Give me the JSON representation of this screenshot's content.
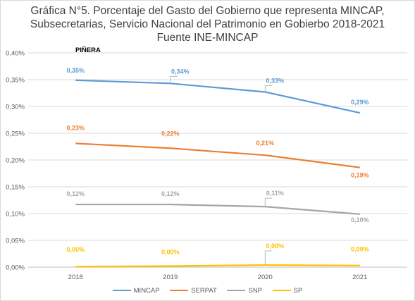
{
  "chart_data": {
    "type": "line",
    "title_lines": [
      "Gráfica N°5.  Porcentaje del Gasto del Gobierno que representa MINCAP,",
      "Subsecretarias, Servicio Nacional del Patrimonio en Gobierbo 2018-2021",
      "Fuente INE-MINCAP"
    ],
    "annotation": "PIÑERA",
    "categories": [
      "2018",
      "2019",
      "2020",
      "2021"
    ],
    "ylim": [
      0,
      0.4
    ],
    "yticks": [
      "0,00%",
      "0,05%",
      "0,10%",
      "0,15%",
      "0,20%",
      "0,25%",
      "0,30%",
      "0,35%",
      "0,40%"
    ],
    "grid": true,
    "legend_position": "bottom",
    "series": [
      {
        "name": "MINCAP",
        "color": "#5b9bd5",
        "values": [
          0.349,
          0.343,
          0.327,
          0.288
        ],
        "labels": [
          "0,35%",
          "0,34%",
          "0,33%",
          "0,29%"
        ]
      },
      {
        "name": "SERPAT",
        "color": "#ed7d31",
        "values": [
          0.231,
          0.222,
          0.209,
          0.186
        ],
        "labels": [
          "0,23%",
          "0,22%",
          "0,21%",
          "0,19%"
        ]
      },
      {
        "name": "SNP",
        "color": "#a5a5a5",
        "values": [
          0.117,
          0.117,
          0.113,
          0.099
        ],
        "labels": [
          "0,12%",
          "0,12%",
          "0,11%",
          "0,10%"
        ]
      },
      {
        "name": "SP",
        "color": "#ffc000",
        "values": [
          0.001,
          0.002,
          0.004,
          0.003
        ],
        "labels": [
          "0,00%",
          "0,00%",
          "0,00%",
          "0,00%"
        ]
      }
    ]
  }
}
